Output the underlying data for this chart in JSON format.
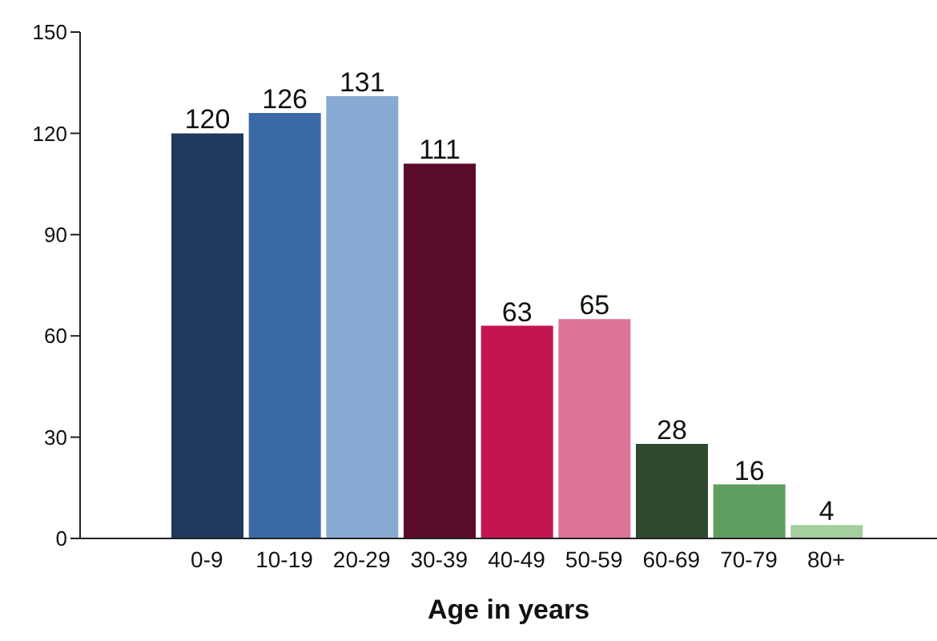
{
  "chart_data": {
    "type": "bar",
    "xlabel": "Age in years",
    "categories": [
      "0-9",
      "10-19",
      "20-29",
      "30-39",
      "40-49",
      "50-59",
      "60-69",
      "70-79",
      "80+"
    ],
    "values": [
      120,
      126,
      131,
      111,
      63,
      65,
      28,
      16,
      4
    ],
    "colors": [
      "#1f3a5c",
      "#3a6aa6",
      "#88aad2",
      "#5a0a2a",
      "#c4154f",
      "#dc7399",
      "#2f4a30",
      "#5f9e60",
      "#a5cf9f"
    ],
    "ylim": [
      0,
      150
    ],
    "yticks": [
      0,
      30,
      60,
      90,
      120,
      150
    ],
    "data_labels": true,
    "grid": false
  }
}
